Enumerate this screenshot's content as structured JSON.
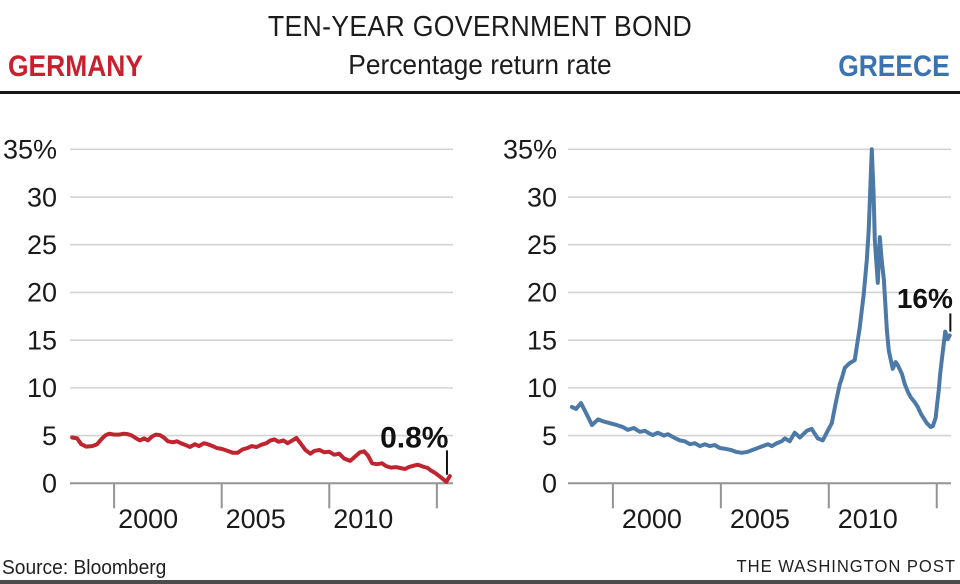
{
  "header": {
    "title_line1": "TEN-YEAR GOVERNMENT BOND",
    "title_line2": "Percentage return rate",
    "left_label": "GERMANY",
    "right_label": "GREECE",
    "left_color": "#c8202e",
    "right_color": "#3a72b2"
  },
  "footer": {
    "source": "Source: Bloomberg",
    "publisher": "THE WASHINGTON POST"
  },
  "colors": {
    "germany_line": "#c0242f",
    "greece_line": "#4d79a7",
    "gridline": "#d3d3d3",
    "axis": "#949494",
    "tick_label": "#1a1a1a",
    "annotation": "#111111"
  },
  "chart_data": [
    {
      "id": "germany",
      "type": "line",
      "title": "GERMANY",
      "ylabel": "Percentage return rate",
      "color": "#c0242f",
      "grid": true,
      "ylim": [
        0,
        35
      ],
      "xlim": [
        1997.95,
        2015.75
      ],
      "y_ticks": [
        {
          "value": 35,
          "label": "35%"
        },
        {
          "value": 30,
          "label": "30"
        },
        {
          "value": 25,
          "label": "25"
        },
        {
          "value": 20,
          "label": "20"
        },
        {
          "value": 15,
          "label": "15"
        },
        {
          "value": 10,
          "label": "10"
        },
        {
          "value": 5,
          "label": "5"
        },
        {
          "value": 0,
          "label": "0"
        }
      ],
      "x_ticks": [
        {
          "year": 2000,
          "label": "2000"
        },
        {
          "year": 2005,
          "label": "2005"
        },
        {
          "year": 2010,
          "label": "2010"
        },
        {
          "year": 2015,
          "label": ""
        }
      ],
      "annotation": {
        "label": "0.8%",
        "text_year": 2013.95,
        "text_value": 3.75,
        "tick_year": 2015.47,
        "tick_top_value": 3.45,
        "tick_bottom_value": 0.9
      },
      "points": [
        [
          1998.05,
          4.8
        ],
        [
          1998.28,
          4.7
        ],
        [
          1998.47,
          4.1
        ],
        [
          1998.7,
          3.85
        ],
        [
          1998.98,
          3.9
        ],
        [
          1999.21,
          4.1
        ],
        [
          1999.4,
          4.6
        ],
        [
          1999.58,
          5.0
        ],
        [
          1999.77,
          5.2
        ],
        [
          2000.0,
          5.1
        ],
        [
          2000.23,
          5.1
        ],
        [
          2000.46,
          5.2
        ],
        [
          2000.65,
          5.15
        ],
        [
          2000.83,
          5.0
        ],
        [
          2001.02,
          4.7
        ],
        [
          2001.2,
          4.5
        ],
        [
          2001.39,
          4.7
        ],
        [
          2001.57,
          4.5
        ],
        [
          2001.76,
          4.9
        ],
        [
          2001.94,
          5.1
        ],
        [
          2002.13,
          5.05
        ],
        [
          2002.31,
          4.8
        ],
        [
          2002.5,
          4.4
        ],
        [
          2002.73,
          4.3
        ],
        [
          2002.92,
          4.4
        ],
        [
          2003.1,
          4.2
        ],
        [
          2003.33,
          4.0
        ],
        [
          2003.52,
          3.8
        ],
        [
          2003.75,
          4.1
        ],
        [
          2003.94,
          3.9
        ],
        [
          2004.17,
          4.2
        ],
        [
          2004.35,
          4.1
        ],
        [
          2004.58,
          3.9
        ],
        [
          2004.77,
          3.7
        ],
        [
          2005.0,
          3.6
        ],
        [
          2005.28,
          3.4
        ],
        [
          2005.51,
          3.2
        ],
        [
          2005.74,
          3.2
        ],
        [
          2005.97,
          3.55
        ],
        [
          2006.2,
          3.7
        ],
        [
          2006.39,
          3.9
        ],
        [
          2006.62,
          3.8
        ],
        [
          2006.85,
          4.05
        ],
        [
          2007.08,
          4.2
        ],
        [
          2007.27,
          4.5
        ],
        [
          2007.45,
          4.6
        ],
        [
          2007.64,
          4.35
        ],
        [
          2007.87,
          4.5
        ],
        [
          2008.06,
          4.2
        ],
        [
          2008.29,
          4.5
        ],
        [
          2008.47,
          4.75
        ],
        [
          2008.66,
          4.2
        ],
        [
          2008.89,
          3.5
        ],
        [
          2009.12,
          3.1
        ],
        [
          2009.31,
          3.4
        ],
        [
          2009.54,
          3.5
        ],
        [
          2009.77,
          3.25
        ],
        [
          2010.0,
          3.3
        ],
        [
          2010.23,
          3.0
        ],
        [
          2010.46,
          3.1
        ],
        [
          2010.69,
          2.6
        ],
        [
          2010.97,
          2.35
        ],
        [
          2011.2,
          2.8
        ],
        [
          2011.43,
          3.25
        ],
        [
          2011.62,
          3.35
        ],
        [
          2011.8,
          2.9
        ],
        [
          2011.99,
          2.1
        ],
        [
          2012.22,
          2.0
        ],
        [
          2012.45,
          2.1
        ],
        [
          2012.64,
          1.8
        ],
        [
          2012.87,
          1.65
        ],
        [
          2013.1,
          1.7
        ],
        [
          2013.29,
          1.6
        ],
        [
          2013.52,
          1.5
        ],
        [
          2013.7,
          1.7
        ],
        [
          2013.94,
          1.85
        ],
        [
          2014.12,
          1.95
        ],
        [
          2014.35,
          1.75
        ],
        [
          2014.58,
          1.6
        ],
        [
          2014.72,
          1.35
        ],
        [
          2014.91,
          1.1
        ],
        [
          2015.09,
          0.8
        ],
        [
          2015.28,
          0.45
        ],
        [
          2015.44,
          0.15
        ],
        [
          2015.6,
          0.75
        ]
      ]
    },
    {
      "id": "greece",
      "type": "line",
      "title": "GREECE",
      "ylabel": "Percentage return rate",
      "color": "#4d79a7",
      "grid": true,
      "ylim": [
        0,
        35
      ],
      "xlim": [
        1997.92,
        2015.66
      ],
      "y_ticks": [
        {
          "value": 35,
          "label": "35%"
        },
        {
          "value": 30,
          "label": "30"
        },
        {
          "value": 25,
          "label": "25"
        },
        {
          "value": 20,
          "label": "20"
        },
        {
          "value": 15,
          "label": "15"
        },
        {
          "value": 10,
          "label": "10"
        },
        {
          "value": 5,
          "label": "5"
        },
        {
          "value": 0,
          "label": "0"
        }
      ],
      "x_ticks": [
        {
          "year": 2000,
          "label": "2000"
        },
        {
          "year": 2005,
          "label": "2005"
        },
        {
          "year": 2010,
          "label": "2010"
        },
        {
          "year": 2015,
          "label": ""
        }
      ],
      "annotation": {
        "label": "16%",
        "text_year": 2014.45,
        "text_value": 18.35,
        "tick_year": 2015.63,
        "tick_top_value": 17.8,
        "tick_bottom_value": 15.9
      },
      "points": [
        [
          1998.1,
          8.0
        ],
        [
          1998.29,
          7.8
        ],
        [
          1998.52,
          8.4
        ],
        [
          1998.75,
          7.4
        ],
        [
          1999.03,
          6.1
        ],
        [
          1999.31,
          6.7
        ],
        [
          1999.54,
          6.5
        ],
        [
          1999.86,
          6.3
        ],
        [
          2000.19,
          6.1
        ],
        [
          2000.46,
          5.9
        ],
        [
          2000.69,
          5.6
        ],
        [
          2000.97,
          5.8
        ],
        [
          2001.25,
          5.4
        ],
        [
          2001.48,
          5.5
        ],
        [
          2001.71,
          5.2
        ],
        [
          2001.85,
          5.05
        ],
        [
          2002.08,
          5.3
        ],
        [
          2002.36,
          5.0
        ],
        [
          2002.55,
          5.15
        ],
        [
          2002.82,
          4.8
        ],
        [
          2003.1,
          4.5
        ],
        [
          2003.33,
          4.4
        ],
        [
          2003.56,
          4.1
        ],
        [
          2003.8,
          4.2
        ],
        [
          2004.03,
          3.9
        ],
        [
          2004.26,
          4.1
        ],
        [
          2004.49,
          3.9
        ],
        [
          2004.72,
          4.0
        ],
        [
          2004.95,
          3.7
        ],
        [
          2005.23,
          3.6
        ],
        [
          2005.46,
          3.5
        ],
        [
          2005.69,
          3.3
        ],
        [
          2005.97,
          3.2
        ],
        [
          2006.25,
          3.3
        ],
        [
          2006.48,
          3.5
        ],
        [
          2006.71,
          3.7
        ],
        [
          2006.94,
          3.9
        ],
        [
          2007.18,
          4.1
        ],
        [
          2007.36,
          3.9
        ],
        [
          2007.59,
          4.2
        ],
        [
          2007.82,
          4.4
        ],
        [
          2007.96,
          4.7
        ],
        [
          2008.19,
          4.4
        ],
        [
          2008.42,
          5.3
        ],
        [
          2008.66,
          4.8
        ],
        [
          2008.98,
          5.5
        ],
        [
          2009.21,
          5.7
        ],
        [
          2009.49,
          4.7
        ],
        [
          2009.72,
          4.5
        ],
        [
          2009.95,
          5.5
        ],
        [
          2010.14,
          6.3
        ],
        [
          2010.32,
          8.4
        ],
        [
          2010.51,
          10.4
        ],
        [
          2010.6,
          11.0
        ],
        [
          2010.74,
          12.1
        ],
        [
          2010.97,
          12.6
        ],
        [
          2011.2,
          12.9
        ],
        [
          2011.43,
          16.3
        ],
        [
          2011.62,
          19.9
        ],
        [
          2011.76,
          23.4
        ],
        [
          2011.85,
          26.5
        ],
        [
          2011.99,
          35.0
        ],
        [
          2012.08,
          30.0
        ],
        [
          2012.13,
          25.5
        ],
        [
          2012.27,
          21.0
        ],
        [
          2012.36,
          25.8
        ],
        [
          2012.45,
          23.4
        ],
        [
          2012.55,
          21.3
        ],
        [
          2012.69,
          16.0
        ],
        [
          2012.78,
          13.9
        ],
        [
          2012.96,
          12.0
        ],
        [
          2013.1,
          12.7
        ],
        [
          2013.19,
          12.4
        ],
        [
          2013.38,
          11.5
        ],
        [
          2013.52,
          10.4
        ],
        [
          2013.66,
          9.6
        ],
        [
          2013.8,
          9.0
        ],
        [
          2013.98,
          8.5
        ],
        [
          2014.12,
          8.0
        ],
        [
          2014.26,
          7.3
        ],
        [
          2014.4,
          6.8
        ],
        [
          2014.54,
          6.3
        ],
        [
          2014.72,
          5.9
        ],
        [
          2014.82,
          6.0
        ],
        [
          2014.95,
          6.9
        ],
        [
          2015.0,
          8.0
        ],
        [
          2015.09,
          9.7
        ],
        [
          2015.16,
          11.5
        ],
        [
          2015.25,
          13.2
        ],
        [
          2015.39,
          15.9
        ],
        [
          2015.5,
          15.1
        ],
        [
          2015.6,
          15.5
        ]
      ]
    }
  ]
}
